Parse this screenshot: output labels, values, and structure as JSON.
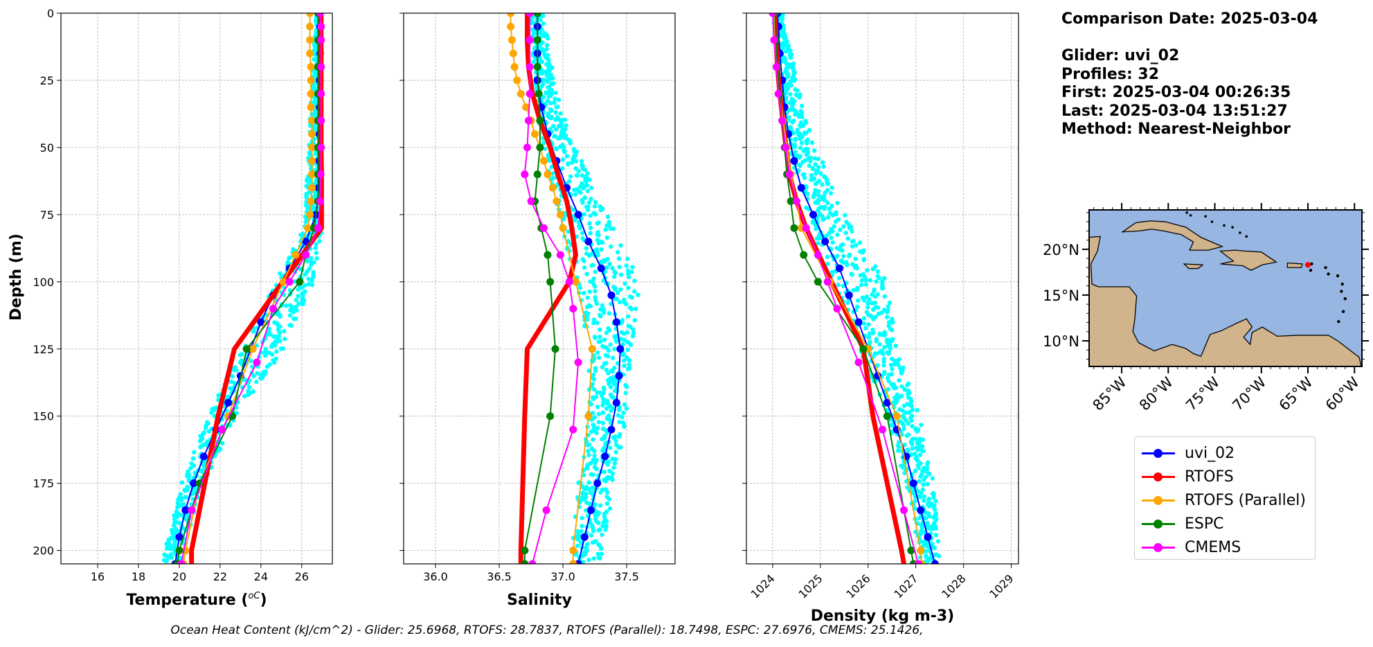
{
  "info": {
    "lines": [
      "Comparison Date: 2025-03-04",
      "",
      "Glider: uvi_02",
      "Profiles: 32",
      "First: 2025-03-04 00:26:35",
      "Last: 2025-03-04 13:51:27",
      "Method: Nearest-Neighbor"
    ]
  },
  "caption": "Ocean Heat Content (kJ/cm^2) - Glider: 25.6968,  RTOFS: 28.7837,  RTOFS (Parallel): 18.7498,  ESPC: 27.6976,  CMEMS: 25.1426,",
  "legend": [
    {
      "name": "uvi_02",
      "color": "#0000ff"
    },
    {
      "name": "RTOFS",
      "color": "#ff0000"
    },
    {
      "name": "RTOFS (Parallel)",
      "color": "#ffa500"
    },
    {
      "name": "ESPC",
      "color": "#008000"
    },
    {
      "name": "CMEMS",
      "color": "#ff00ff"
    }
  ],
  "chart_data": [
    {
      "type": "line",
      "xlabel": "Temperature",
      "xunit": "oC",
      "ylabel": "Depth (m)",
      "xlim": [
        14.2,
        27.5
      ],
      "ylim": [
        205,
        0
      ],
      "xticks": [
        16,
        18,
        20,
        22,
        24,
        26
      ],
      "xtick_labels": [
        "16",
        "18",
        "20",
        "22",
        "24",
        "26"
      ],
      "yticks": [
        0,
        25,
        50,
        75,
        100,
        125,
        150,
        175,
        200
      ],
      "ytick_labels": [
        "0",
        "25",
        "50",
        "75",
        "100",
        "125",
        "150",
        "175",
        "200"
      ],
      "grid": true,
      "cloud": {
        "color": "#00ffff",
        "depth": [
          [
            0,
            26.7,
            26.95
          ],
          [
            80,
            26.1,
            27.0
          ],
          [
            100,
            24.7,
            26.6
          ],
          [
            125,
            23.1,
            25.1
          ],
          [
            150,
            21.4,
            22.8
          ],
          [
            175,
            20.1,
            21.2
          ],
          [
            200,
            19.3,
            20.2
          ],
          [
            205,
            19.2,
            20.1
          ]
        ]
      },
      "series": [
        {
          "name": "uvi_02",
          "color": "#0000ff",
          "width": 2,
          "marker": true,
          "depth": [
            0,
            5,
            15,
            25,
            35,
            45,
            55,
            65,
            75,
            85,
            95,
            105,
            115,
            125,
            135,
            145,
            155,
            165,
            175,
            185,
            195,
            205
          ],
          "values": [
            26.9,
            26.9,
            26.9,
            26.88,
            26.88,
            26.87,
            26.86,
            26.83,
            26.7,
            26.2,
            25.4,
            24.6,
            24.0,
            23.5,
            23.0,
            22.4,
            21.8,
            21.2,
            20.7,
            20.3,
            20.0,
            19.8
          ]
        },
        {
          "name": "RTOFS",
          "color": "#ff0000",
          "width": 7,
          "marker": false,
          "depth": [
            0,
            10,
            20,
            30,
            50,
            60,
            70,
            80,
            125,
            150,
            200,
            205
          ],
          "values": [
            26.95,
            26.95,
            26.95,
            26.95,
            26.95,
            26.97,
            26.97,
            26.97,
            22.7,
            21.9,
            20.6,
            20.6
          ]
        },
        {
          "name": "RTOFS (Parallel)",
          "color": "#ffa500",
          "width": 2,
          "marker": true,
          "depth": [
            0,
            5,
            10,
            15,
            20,
            25,
            30,
            35,
            40,
            45,
            50,
            55,
            60,
            65,
            70,
            75,
            80,
            90,
            100,
            125,
            150,
            175,
            200,
            205
          ],
          "values": [
            26.4,
            26.4,
            26.4,
            26.4,
            26.45,
            26.45,
            26.45,
            26.45,
            26.5,
            26.5,
            26.5,
            26.5,
            26.5,
            26.5,
            26.45,
            26.4,
            26.3,
            25.7,
            25.1,
            23.6,
            22.4,
            21.0,
            20.3,
            20.2
          ]
        },
        {
          "name": "ESPC",
          "color": "#008000",
          "width": 2,
          "marker": true,
          "depth": [
            0,
            10,
            20,
            30,
            40,
            50,
            60,
            70,
            80,
            90,
            100,
            125,
            150,
            175,
            200,
            205
          ],
          "values": [
            26.8,
            26.8,
            26.8,
            26.8,
            26.8,
            26.8,
            26.8,
            26.8,
            26.6,
            26.2,
            25.9,
            23.3,
            22.6,
            21.0,
            20.0,
            19.9
          ]
        },
        {
          "name": "CMEMS",
          "color": "#ff00ff",
          "width": 2,
          "marker": true,
          "depth": [
            0,
            5,
            10,
            20,
            30,
            40,
            50,
            60,
            70,
            80,
            90,
            100,
            110,
            130,
            155,
            185,
            205
          ],
          "values": [
            26.9,
            26.95,
            26.95,
            26.95,
            26.95,
            26.95,
            26.95,
            26.93,
            26.9,
            26.8,
            26.2,
            25.4,
            24.6,
            23.8,
            22.1,
            20.6,
            20.1
          ]
        }
      ]
    },
    {
      "type": "line",
      "xlabel": "Salinity",
      "ylim": [
        205,
        0
      ],
      "xlim": [
        35.75,
        37.88
      ],
      "xticks": [
        36.0,
        36.5,
        37.0,
        37.5
      ],
      "xtick_labels": [
        "36.0",
        "36.5",
        "37.0",
        "37.5"
      ],
      "yticks": [
        0,
        25,
        50,
        75,
        100,
        125,
        150,
        175,
        200
      ],
      "grid": true,
      "cloud": {
        "color": "#00ffff",
        "depth": [
          [
            0,
            36.74,
            36.86
          ],
          [
            30,
            36.78,
            36.95
          ],
          [
            50,
            36.85,
            37.1
          ],
          [
            75,
            36.95,
            37.35
          ],
          [
            100,
            37.1,
            37.6
          ],
          [
            125,
            37.2,
            37.55
          ],
          [
            150,
            37.2,
            37.5
          ],
          [
            175,
            37.12,
            37.42
          ],
          [
            205,
            37.06,
            37.3
          ]
        ]
      },
      "series": [
        {
          "name": "uvi_02",
          "color": "#0000ff",
          "width": 2,
          "marker": true,
          "depth": [
            0,
            5,
            15,
            25,
            35,
            45,
            55,
            65,
            75,
            85,
            95,
            105,
            115,
            125,
            135,
            145,
            155,
            165,
            175,
            185,
            195,
            205
          ],
          "values": [
            36.8,
            36.8,
            36.8,
            36.8,
            36.83,
            36.88,
            36.95,
            37.03,
            37.12,
            37.2,
            37.3,
            37.38,
            37.42,
            37.45,
            37.44,
            37.42,
            37.38,
            37.33,
            37.27,
            37.22,
            37.17,
            37.12
          ]
        },
        {
          "name": "RTOFS",
          "color": "#ff0000",
          "width": 7,
          "marker": false,
          "depth": [
            0,
            10,
            20,
            30,
            40,
            50,
            60,
            70,
            80,
            90,
            100,
            125,
            150,
            200,
            205
          ],
          "values": [
            36.72,
            36.72,
            36.73,
            36.76,
            36.82,
            36.9,
            36.96,
            37.03,
            37.07,
            37.1,
            37.05,
            36.72,
            36.7,
            36.67,
            36.67
          ]
        },
        {
          "name": "RTOFS (Parallel)",
          "color": "#ffa500",
          "width": 2,
          "marker": true,
          "depth": [
            0,
            5,
            10,
            15,
            20,
            25,
            30,
            35,
            40,
            45,
            50,
            55,
            60,
            65,
            70,
            75,
            80,
            100,
            125,
            150,
            200,
            205
          ],
          "values": [
            36.59,
            36.59,
            36.6,
            36.61,
            36.62,
            36.64,
            36.67,
            36.71,
            36.75,
            36.78,
            36.82,
            36.85,
            36.88,
            36.92,
            36.95,
            36.98,
            37.0,
            37.1,
            37.23,
            37.2,
            37.08,
            37.08
          ]
        },
        {
          "name": "ESPC",
          "color": "#008000",
          "width": 2,
          "marker": true,
          "depth": [
            0,
            10,
            20,
            30,
            40,
            50,
            60,
            70,
            80,
            90,
            100,
            125,
            150,
            200,
            205
          ],
          "values": [
            36.8,
            36.8,
            36.8,
            36.81,
            36.82,
            36.82,
            36.8,
            36.78,
            36.83,
            36.88,
            36.9,
            36.94,
            36.9,
            36.7,
            36.7
          ]
        },
        {
          "name": "CMEMS",
          "color": "#ff00ff",
          "width": 2,
          "marker": true,
          "depth": [
            0,
            10,
            20,
            30,
            40,
            50,
            60,
            70,
            80,
            90,
            100,
            110,
            130,
            155,
            185,
            205
          ],
          "values": [
            36.74,
            36.74,
            36.74,
            36.74,
            36.73,
            36.72,
            36.7,
            36.75,
            36.85,
            36.98,
            37.05,
            37.08,
            37.12,
            37.08,
            36.87,
            36.76
          ]
        }
      ]
    },
    {
      "type": "line",
      "xlabel": "Density (kg m-3)",
      "ylim": [
        205,
        0
      ],
      "xlim": [
        1023.45,
        1029.15
      ],
      "xticks": [
        1024,
        1025,
        1026,
        1027,
        1028,
        1029
      ],
      "xtick_labels": [
        "1024",
        "1025",
        "1026",
        "1027",
        "1028",
        "1029"
      ],
      "yticks": [
        0,
        25,
        50,
        75,
        100,
        125,
        150,
        175,
        200
      ],
      "grid": true,
      "cloud": {
        "color": "#00ffff",
        "depth": [
          [
            0,
            1024.0,
            1024.2
          ],
          [
            40,
            1024.2,
            1024.7
          ],
          [
            75,
            1024.7,
            1025.5
          ],
          [
            100,
            1025.3,
            1026.4
          ],
          [
            125,
            1025.8,
            1026.6
          ],
          [
            150,
            1026.4,
            1027.1
          ],
          [
            175,
            1026.8,
            1027.4
          ],
          [
            205,
            1027.1,
            1027.5
          ]
        ]
      },
      "series": [
        {
          "name": "uvi_02",
          "color": "#0000ff",
          "width": 2,
          "marker": true,
          "depth": [
            0,
            5,
            15,
            25,
            35,
            45,
            55,
            65,
            75,
            85,
            95,
            105,
            115,
            125,
            135,
            145,
            155,
            165,
            175,
            185,
            195,
            205
          ],
          "values": [
            1024.1,
            1024.12,
            1024.15,
            1024.2,
            1024.25,
            1024.33,
            1024.45,
            1024.6,
            1024.85,
            1025.1,
            1025.4,
            1025.6,
            1025.8,
            1026.0,
            1026.2,
            1026.4,
            1026.6,
            1026.8,
            1026.95,
            1027.1,
            1027.25,
            1027.4
          ]
        },
        {
          "name": "RTOFS",
          "color": "#ff0000",
          "width": 7,
          "marker": false,
          "depth": [
            0,
            10,
            20,
            30,
            50,
            60,
            70,
            80,
            125,
            150,
            200,
            205
          ],
          "values": [
            1024.05,
            1024.07,
            1024.1,
            1024.15,
            1024.28,
            1024.35,
            1024.5,
            1024.7,
            1025.9,
            1026.1,
            1026.7,
            1026.75
          ]
        },
        {
          "name": "RTOFS (Parallel)",
          "color": "#ffa500",
          "width": 2,
          "marker": true,
          "depth": [
            0,
            10,
            20,
            30,
            40,
            50,
            60,
            70,
            80,
            100,
            125,
            150,
            200,
            205
          ],
          "values": [
            1024.03,
            1024.05,
            1024.1,
            1024.15,
            1024.22,
            1024.3,
            1024.38,
            1024.5,
            1024.6,
            1025.2,
            1026.0,
            1026.6,
            1027.1,
            1027.12
          ]
        },
        {
          "name": "ESPC",
          "color": "#008000",
          "width": 2,
          "marker": true,
          "depth": [
            0,
            10,
            20,
            30,
            40,
            50,
            60,
            70,
            80,
            90,
            100,
            125,
            150,
            200,
            205
          ],
          "values": [
            1024.05,
            1024.07,
            1024.1,
            1024.15,
            1024.2,
            1024.25,
            1024.3,
            1024.38,
            1024.45,
            1024.65,
            1024.95,
            1025.9,
            1026.4,
            1026.9,
            1026.95
          ]
        },
        {
          "name": "CMEMS",
          "color": "#ff00ff",
          "width": 2,
          "marker": true,
          "depth": [
            0,
            10,
            20,
            30,
            40,
            50,
            60,
            70,
            80,
            90,
            100,
            110,
            130,
            155,
            185,
            205
          ],
          "values": [
            1024.0,
            1024.03,
            1024.08,
            1024.12,
            1024.2,
            1024.27,
            1024.35,
            1024.5,
            1024.7,
            1024.95,
            1025.15,
            1025.35,
            1025.8,
            1026.3,
            1026.75,
            1027.05
          ]
        }
      ]
    }
  ],
  "map": {
    "lat_ticks": [
      "20°N",
      "15°N",
      "10°N"
    ],
    "lat_values": [
      20,
      15,
      10
    ],
    "lon_ticks": [
      "85°W",
      "80°W",
      "75°W",
      "70°W",
      "65°W",
      "60°W"
    ],
    "lon_values": [
      -85,
      -80,
      -75,
      -70,
      -65,
      -60
    ],
    "lon_range": [
      -88.5,
      -59.2
    ],
    "lat_range": [
      7.2,
      24.3
    ],
    "ocean_color": "#97b6e1",
    "land_color": "#d2b48c",
    "glider_position": [
      -65.0,
      18.3
    ],
    "glider_color": "#ff0000"
  }
}
